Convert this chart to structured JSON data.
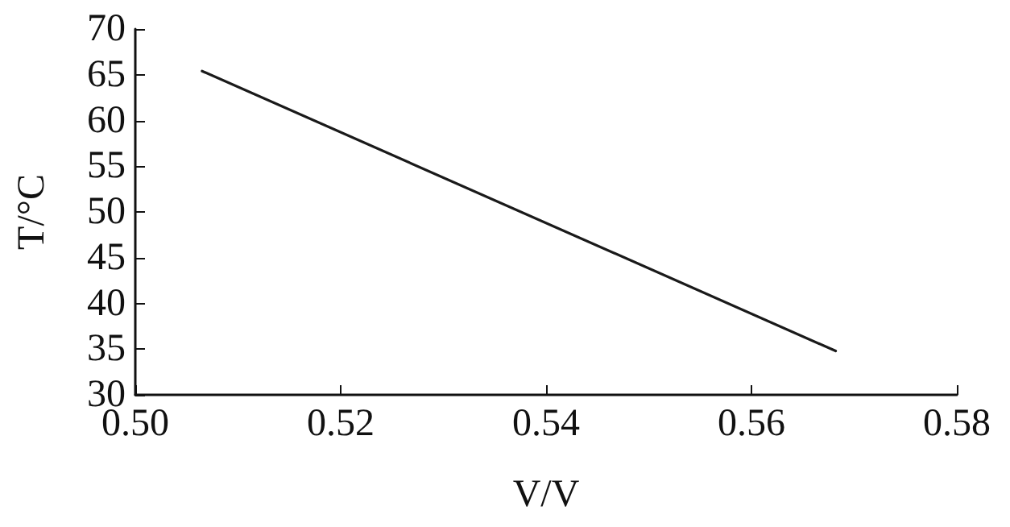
{
  "chart_data": {
    "type": "line",
    "xlabel": "V/V",
    "ylabel": "T/°C",
    "x": [
      0.5065,
      0.5682
    ],
    "series": [
      {
        "color": "#1a1a1a",
        "values": [
          65.4,
          34.8
        ]
      }
    ],
    "xlim": [
      0.5,
      0.58
    ],
    "xticks": [
      {
        "value": 0.5,
        "label": "0.50"
      },
      0.52,
      0.54,
      0.56,
      0.58
    ],
    "ylim": [
      30,
      70
    ],
    "yticks": [
      30,
      35,
      40,
      45,
      50,
      55,
      60,
      65,
      70
    ],
    "grid": false,
    "marker": "none",
    "line_style": "solid"
  }
}
